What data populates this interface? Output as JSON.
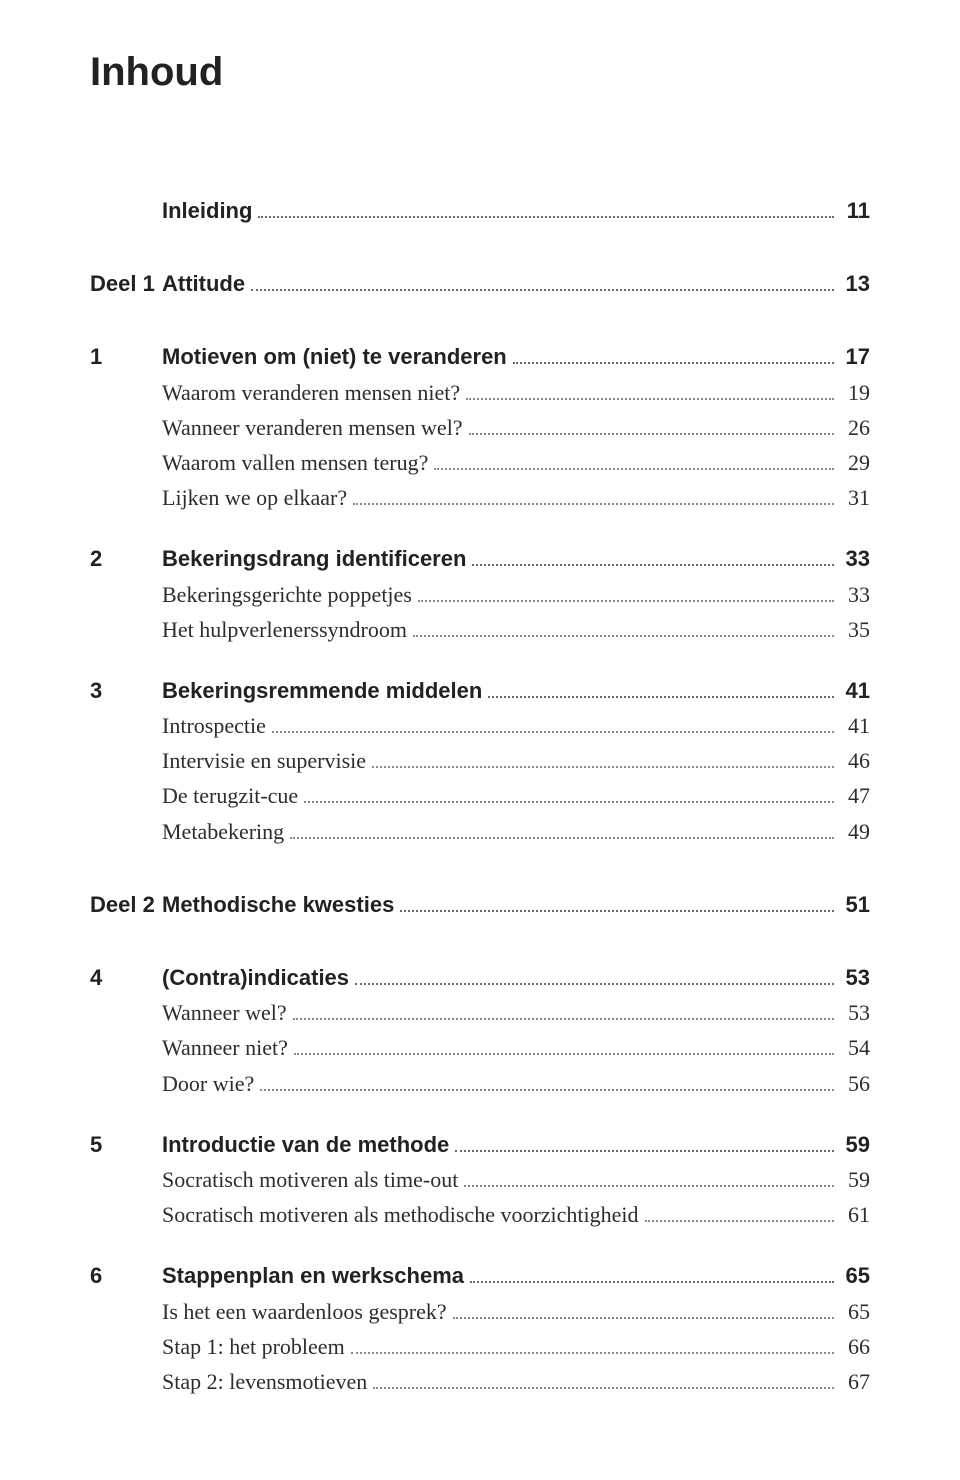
{
  "colors": {
    "text": "#2d2d2d",
    "leaders": "#8a8a8a",
    "background": "#ffffff"
  },
  "title": "Inhoud",
  "entries": [
    {
      "kind": "bold",
      "num": "",
      "label": "Inleiding",
      "page": "11",
      "gap_before": "lg"
    },
    {
      "kind": "bold",
      "num": "Deel 1",
      "label": "Attitude",
      "page": "13",
      "gap_before": "lg",
      "wide_num": true
    },
    {
      "kind": "bold",
      "num": "1",
      "label": "Motieven om (niet) te veranderen",
      "page": "17",
      "gap_before": "lg"
    },
    {
      "kind": "plain",
      "num": "",
      "label": "Waarom veranderen mensen niet?",
      "page": "19"
    },
    {
      "kind": "plain",
      "num": "",
      "label": "Wanneer veranderen mensen wel?",
      "page": "26"
    },
    {
      "kind": "plain",
      "num": "",
      "label": "Waarom vallen mensen terug?",
      "page": "29"
    },
    {
      "kind": "plain",
      "num": "",
      "label": "Lijken we op elkaar?",
      "page": "31"
    },
    {
      "kind": "bold",
      "num": "2",
      "label": "Bekeringsdrang identificeren",
      "page": "33",
      "gap_before": "md"
    },
    {
      "kind": "plain",
      "num": "",
      "label": "Bekeringsgerichte poppetjes",
      "page": "33"
    },
    {
      "kind": "plain",
      "num": "",
      "label": "Het hulpverlenerssyndroom",
      "page": "35"
    },
    {
      "kind": "bold",
      "num": "3",
      "label": "Bekeringsremmende middelen",
      "page": "41",
      "gap_before": "md"
    },
    {
      "kind": "plain",
      "num": "",
      "label": "Introspectie",
      "page": "41"
    },
    {
      "kind": "plain",
      "num": "",
      "label": "Intervisie en supervisie",
      "page": "46"
    },
    {
      "kind": "plain",
      "num": "",
      "label": "De terugzit-cue",
      "page": "47"
    },
    {
      "kind": "plain",
      "num": "",
      "label": "Metabekering",
      "page": "49"
    },
    {
      "kind": "bold",
      "num": "Deel 2",
      "label": "Methodische kwesties",
      "page": "51",
      "gap_before": "lg",
      "wide_num": true
    },
    {
      "kind": "bold",
      "num": "4",
      "label": "(Contra)indicaties",
      "page": "53",
      "gap_before": "lg"
    },
    {
      "kind": "plain",
      "num": "",
      "label": "Wanneer wel?",
      "page": "53"
    },
    {
      "kind": "plain",
      "num": "",
      "label": "Wanneer niet?",
      "page": "54"
    },
    {
      "kind": "plain",
      "num": "",
      "label": "Door wie?",
      "page": "56"
    },
    {
      "kind": "bold",
      "num": "5",
      "label": "Introductie van de methode",
      "page": "59",
      "gap_before": "md"
    },
    {
      "kind": "plain",
      "num": "",
      "label": "Socratisch motiveren als time-out",
      "page": "59"
    },
    {
      "kind": "plain",
      "num": "",
      "label": "Socratisch motiveren als methodische voorzichtigheid",
      "page": "61"
    },
    {
      "kind": "bold",
      "num": "6",
      "label": "Stappenplan en werkschema",
      "page": "65",
      "gap_before": "md"
    },
    {
      "kind": "plain",
      "num": "",
      "label": "Is het een waardenloos gesprek?",
      "page": "65"
    },
    {
      "kind": "plain",
      "num": "",
      "label": "Stap 1: het probleem",
      "page": "66"
    },
    {
      "kind": "plain",
      "num": "",
      "label": "Stap 2: levensmotieven",
      "page": "67"
    }
  ]
}
